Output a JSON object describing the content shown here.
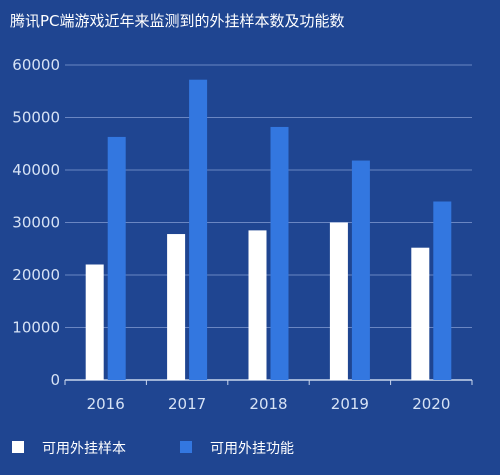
{
  "chart_data": {
    "type": "bar",
    "title": "腾讯PC端游戏近年来监测到的外挂样本数及功能数",
    "xlabel": "",
    "ylabel": "",
    "categories": [
      "2016",
      "2017",
      "2018",
      "2019",
      "2020"
    ],
    "series": [
      {
        "name": "可用外挂样本",
        "values": [
          22000,
          27800,
          28500,
          30000,
          25200
        ]
      },
      {
        "name": "可用外挂功能",
        "values": [
          46300,
          57200,
          48200,
          41800,
          34000
        ]
      }
    ],
    "ylim": [
      0,
      60000
    ],
    "yticks": [
      0,
      10000,
      20000,
      30000,
      40000,
      50000,
      60000
    ],
    "grid": true,
    "legend_position": "bottom-left"
  },
  "colors": {
    "background": "#1f4591",
    "series": [
      "#ffffff",
      "#3377e0"
    ],
    "grid": "#6a86c2"
  }
}
